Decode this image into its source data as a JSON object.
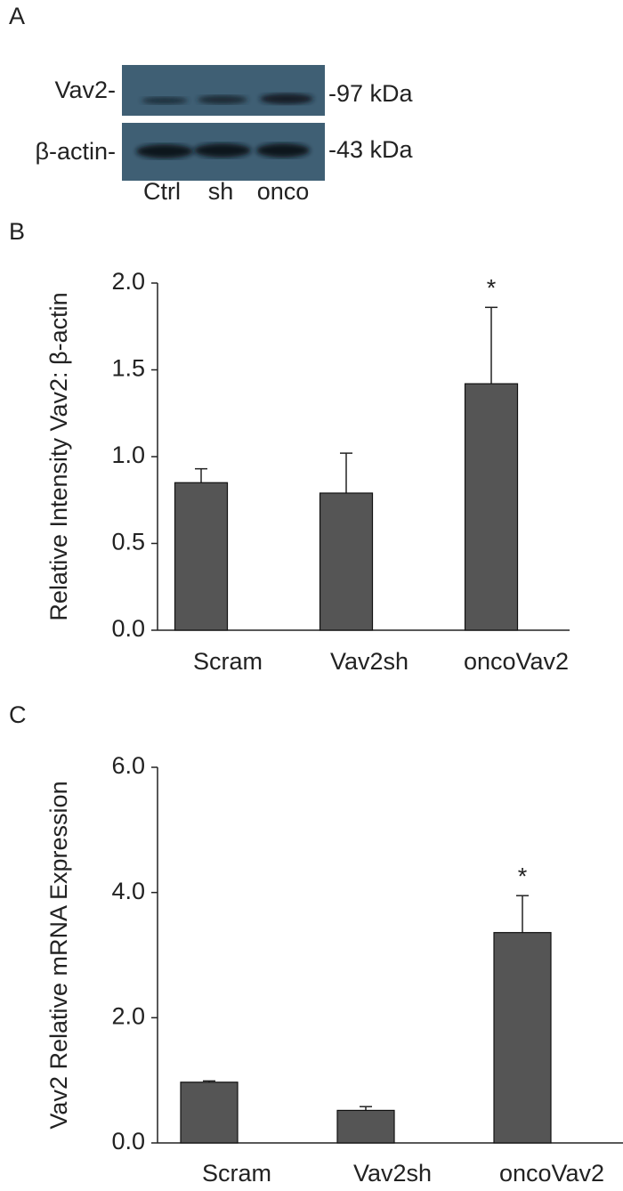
{
  "panel_labels": [
    "A",
    "B",
    "C"
  ],
  "blot": {
    "rows": [
      "Vav2-",
      "β-actin-"
    ],
    "sizes": [
      "-97 kDa",
      "-43 kDa"
    ],
    "lanes": [
      "Ctrl",
      "sh",
      "onco"
    ]
  },
  "chart_data": [
    {
      "type": "bar",
      "y_label": "Relative Intensity  Vav2: β-actin",
      "categories": [
        "Scram",
        "Vav2sh",
        "oncoVav2"
      ],
      "values": [
        0.85,
        0.79,
        1.42
      ],
      "errors": [
        0.08,
        0.23,
        0.44
      ],
      "color": "#555555",
      "ylim": [
        0,
        2
      ],
      "yticks": [
        {
          "value": 0,
          "label": "0.0"
        },
        {
          "value": 0.5,
          "label": "0.5"
        },
        {
          "value": 1,
          "label": "1.0"
        },
        {
          "value": 1.5,
          "label": "1.5"
        },
        {
          "value": 2,
          "label": "2.0"
        }
      ],
      "annotations": [
        {
          "category": "oncoVav2",
          "text": "*"
        }
      ]
    },
    {
      "type": "bar",
      "y_label": "Vav2 Relative mRNA Expression",
      "categories": [
        "Scram",
        "Vav2sh",
        "oncoVav2"
      ],
      "values": [
        0.97,
        0.52,
        3.36
      ],
      "errors": [
        0.02,
        0.06,
        0.59
      ],
      "color": "#555555",
      "ylim": [
        0,
        6
      ],
      "yticks": [
        {
          "value": 0,
          "label": "0.0"
        },
        {
          "value": 2,
          "label": "2.0"
        },
        {
          "value": 4,
          "label": "4.0"
        },
        {
          "value": 6,
          "label": "6.0"
        }
      ],
      "annotations": [
        {
          "category": "oncoVav2",
          "text": "*"
        }
      ]
    }
  ]
}
